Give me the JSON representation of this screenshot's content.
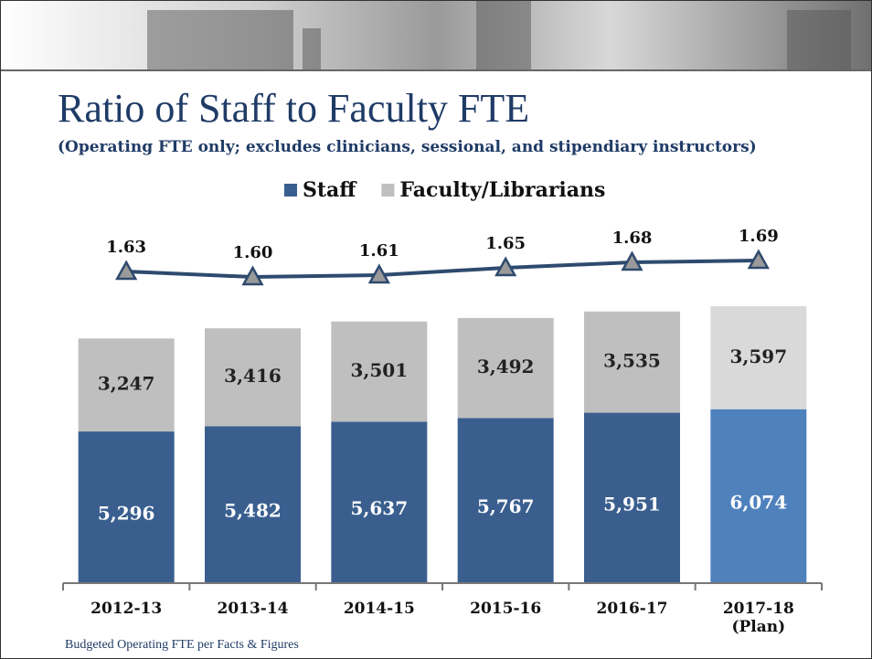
{
  "title": "Ratio of Staff to Faculty FTE",
  "subtitle": "(Operating FTE only; excludes clinicians, sessional, and stipendiary instructors)",
  "footer": "Budgeted Operating FTE per Facts & Figures",
  "chart_data": {
    "type": "stacked-bar",
    "categories": [
      "2012-13",
      "2013-14",
      "2014-15",
      "2015-16",
      "2016-17",
      "2017-18 (Plan)"
    ],
    "series": [
      {
        "name": "Staff",
        "color": "#3a5f8f",
        "colors": [
          "#3a5f8f",
          "#3a5f8f",
          "#3a5f8f",
          "#3a5f8f",
          "#3a5f8f",
          "#4f81bd"
        ],
        "values": [
          5296,
          5482,
          5637,
          5767,
          5951,
          6074
        ],
        "value_labels": [
          "5,296",
          "5,482",
          "5,637",
          "5,767",
          "5,951",
          "6,074"
        ]
      },
      {
        "name": "Faculty/Librarians",
        "color": "#bfbfbf",
        "colors": [
          "#bfbfbf",
          "#bfbfbf",
          "#bfbfbf",
          "#bfbfbf",
          "#bfbfbf",
          "#d9d9d9"
        ],
        "values": [
          3247,
          3416,
          3501,
          3492,
          3535,
          3597
        ],
        "value_labels": [
          "3,247",
          "3,416",
          "3,501",
          "3,492",
          "3,535",
          "3,597"
        ]
      }
    ],
    "ratio": {
      "color": "#2e4a6e",
      "marker_color": "#9a9a9a",
      "values": [
        1.63,
        1.6,
        1.61,
        1.65,
        1.68,
        1.69
      ],
      "value_labels": [
        "1.63",
        "1.60",
        "1.61",
        "1.65",
        "1.68",
        "1.69"
      ]
    }
  }
}
